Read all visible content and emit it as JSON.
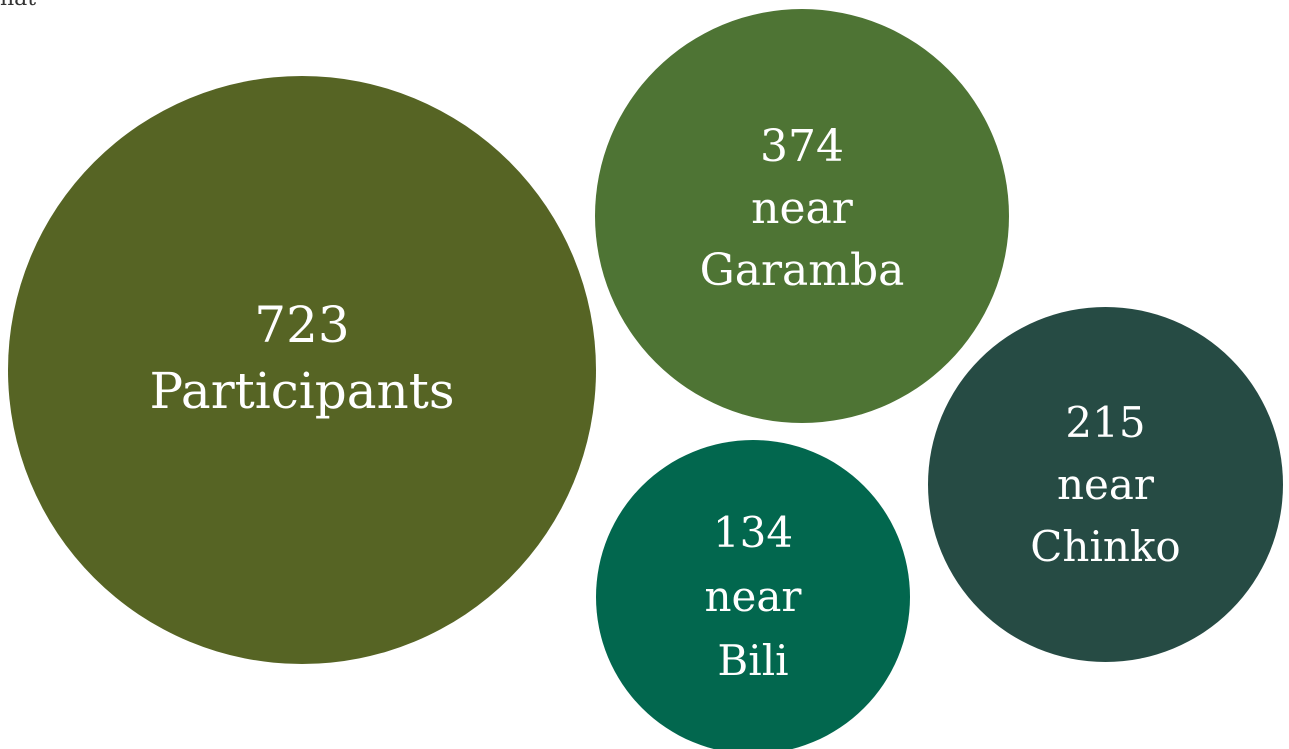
{
  "colors": {
    "total": "#566424",
    "garamba": "#4e7434",
    "chinko": "#264b44",
    "bili": "#02674e"
  },
  "top_fragment": "nat",
  "bubbles": {
    "total": {
      "count": "723",
      "label": "Participants"
    },
    "garamba": {
      "count": "374",
      "prefix": "near",
      "site": "Garamba"
    },
    "chinko": {
      "count": "215",
      "prefix": "near",
      "site": "Chinko"
    },
    "bili": {
      "count": "134",
      "prefix": "near",
      "site": "Bili"
    }
  }
}
